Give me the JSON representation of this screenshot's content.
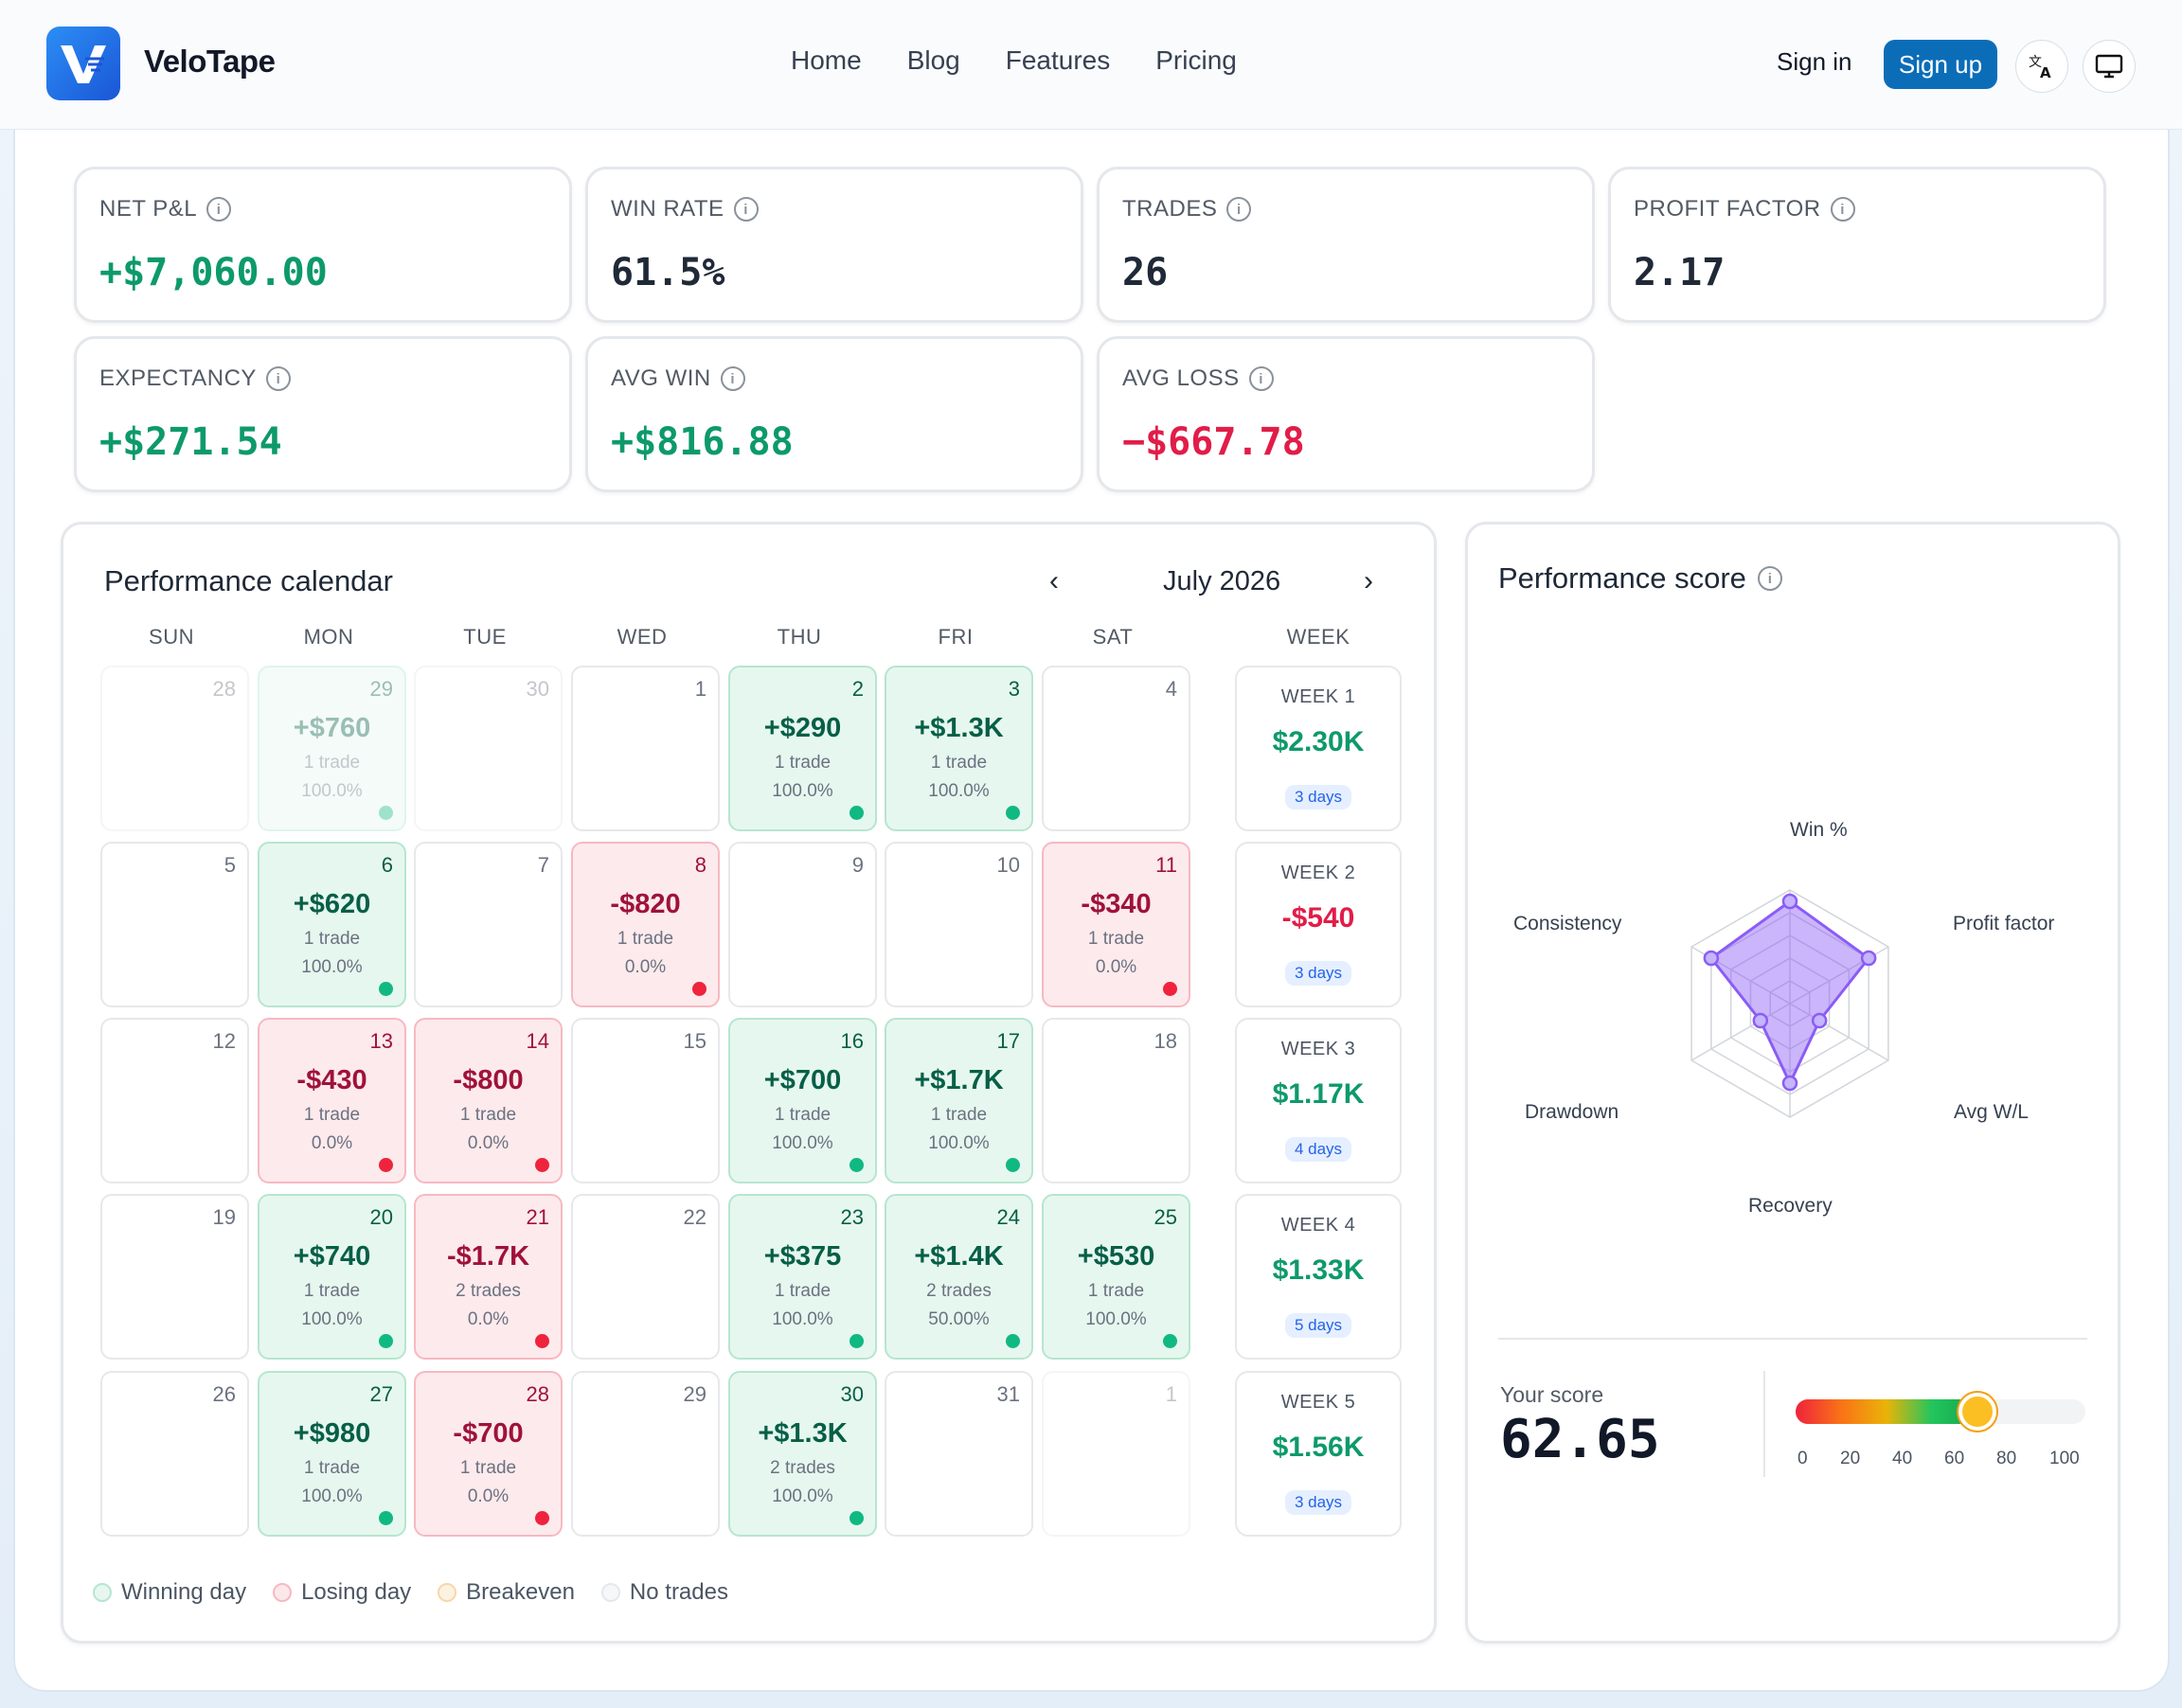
{
  "header": {
    "brand": "VeloTape",
    "nav": [
      "Home",
      "Blog",
      "Features",
      "Pricing"
    ],
    "sign_in": "Sign in",
    "sign_up": "Sign up"
  },
  "stats": [
    {
      "label": "NET P&L",
      "value": "+$7,060.00",
      "tone": "pos"
    },
    {
      "label": "WIN RATE",
      "value": "61.5%",
      "tone": "neu"
    },
    {
      "label": "TRADES",
      "value": "26",
      "tone": "neu"
    },
    {
      "label": "PROFIT FACTOR",
      "value": "2.17",
      "tone": "neu"
    },
    {
      "label": "EXPECTANCY",
      "value": "+$271.54",
      "tone": "pos"
    },
    {
      "label": "AVG WIN",
      "value": "+$816.88",
      "tone": "pos"
    },
    {
      "label": "AVG LOSS",
      "value": "−$667.78",
      "tone": "neg"
    }
  ],
  "calendar": {
    "title": "Performance calendar",
    "month": "July 2026",
    "days": [
      "SUN",
      "MON",
      "TUE",
      "WED",
      "THU",
      "FRI",
      "SAT"
    ],
    "week_header": "WEEK",
    "cells": [
      [
        {
          "d": "28",
          "o": 1
        },
        {
          "d": "29",
          "o": 1,
          "t": "win",
          "a": "+$760",
          "c": "1 trade",
          "w": "100.0%"
        },
        {
          "d": "30",
          "o": 1
        },
        {
          "d": "1"
        },
        {
          "d": "2",
          "t": "win",
          "a": "+$290",
          "c": "1 trade",
          "w": "100.0%"
        },
        {
          "d": "3",
          "t": "win",
          "a": "+$1.3K",
          "c": "1 trade",
          "w": "100.0%"
        },
        {
          "d": "4"
        }
      ],
      [
        {
          "d": "5"
        },
        {
          "d": "6",
          "t": "win",
          "a": "+$620",
          "c": "1 trade",
          "w": "100.0%"
        },
        {
          "d": "7"
        },
        {
          "d": "8",
          "t": "loss",
          "a": "-$820",
          "c": "1 trade",
          "w": "0.0%"
        },
        {
          "d": "9"
        },
        {
          "d": "10"
        },
        {
          "d": "11",
          "t": "loss",
          "a": "-$340",
          "c": "1 trade",
          "w": "0.0%"
        }
      ],
      [
        {
          "d": "12"
        },
        {
          "d": "13",
          "t": "loss",
          "a": "-$430",
          "c": "1 trade",
          "w": "0.0%"
        },
        {
          "d": "14",
          "t": "loss",
          "a": "-$800",
          "c": "1 trade",
          "w": "0.0%"
        },
        {
          "d": "15"
        },
        {
          "d": "16",
          "t": "win",
          "a": "+$700",
          "c": "1 trade",
          "w": "100.0%"
        },
        {
          "d": "17",
          "t": "win",
          "a": "+$1.7K",
          "c": "1 trade",
          "w": "100.0%"
        },
        {
          "d": "18"
        }
      ],
      [
        {
          "d": "19"
        },
        {
          "d": "20",
          "t": "win",
          "a": "+$740",
          "c": "1 trade",
          "w": "100.0%"
        },
        {
          "d": "21",
          "t": "loss",
          "a": "-$1.7K",
          "c": "2 trades",
          "w": "0.0%"
        },
        {
          "d": "22"
        },
        {
          "d": "23",
          "t": "win",
          "a": "+$375",
          "c": "1 trade",
          "w": "100.0%"
        },
        {
          "d": "24",
          "t": "win",
          "a": "+$1.4K",
          "c": "2 trades",
          "w": "50.00%"
        },
        {
          "d": "25",
          "t": "win",
          "a": "+$530",
          "c": "1 trade",
          "w": "100.0%"
        }
      ],
      [
        {
          "d": "26"
        },
        {
          "d": "27",
          "t": "win",
          "a": "+$980",
          "c": "1 trade",
          "w": "100.0%"
        },
        {
          "d": "28",
          "t": "loss",
          "a": "-$700",
          "c": "1 trade",
          "w": "0.0%"
        },
        {
          "d": "29"
        },
        {
          "d": "30",
          "t": "win",
          "a": "+$1.3K",
          "c": "2 trades",
          "w": "100.0%"
        },
        {
          "d": "31"
        },
        {
          "d": "1",
          "o": 1
        }
      ]
    ],
    "weeks": [
      {
        "label": "WEEK 1",
        "amount": "$2.30K",
        "days": "3 days",
        "tone": "pos"
      },
      {
        "label": "WEEK 2",
        "amount": "-$540",
        "days": "3 days",
        "tone": "neg"
      },
      {
        "label": "WEEK 3",
        "amount": "$1.17K",
        "days": "4 days",
        "tone": "pos"
      },
      {
        "label": "WEEK 4",
        "amount": "$1.33K",
        "days": "5 days",
        "tone": "pos"
      },
      {
        "label": "WEEK 5",
        "amount": "$1.56K",
        "days": "3 days",
        "tone": "pos"
      }
    ],
    "legend": [
      "Winning day",
      "Losing day",
      "Breakeven",
      "No trades"
    ],
    "legend_colors": [
      "#b6e6cf",
      "#f6b9c1",
      "#f7d7a8",
      "#e5e7eb"
    ]
  },
  "score": {
    "title": "Performance score",
    "axes": [
      "Win %",
      "Profit factor",
      "Avg W/L",
      "Recovery",
      "Drawdown",
      "Consistency"
    ],
    "values": [
      0.9,
      0.8,
      0.3,
      0.7,
      0.3,
      0.8
    ],
    "your_score_label": "Your score",
    "score_value": "62.65",
    "score_numeric": 62.65,
    "ticks": [
      "0",
      "20",
      "40",
      "60",
      "80",
      "100"
    ]
  },
  "colors": {
    "win": "#10b981",
    "loss": "#ef233c",
    "accent": "#0b6db8",
    "radar": "#8b5cf6"
  }
}
